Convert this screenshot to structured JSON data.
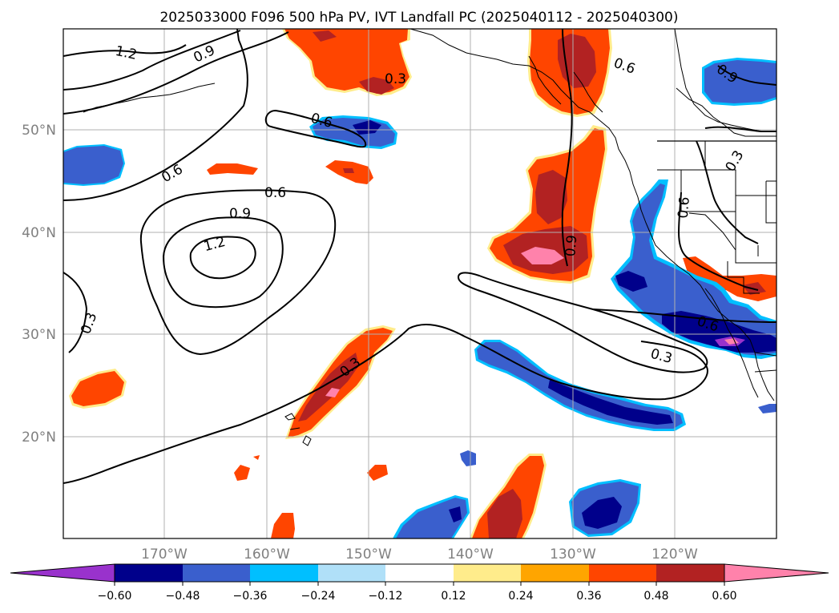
{
  "title": "2025033000 F096 500 hPa PV, IVT Landfall PC (2025040112 - 2025040300)",
  "lat_labels": [
    "50°N",
    "40°N",
    "30°N",
    "20°N"
  ],
  "lon_labels": [
    "170°W",
    "160°W",
    "150°W",
    "140°W",
    "130°W",
    "120°W"
  ],
  "contour_labels": [
    "1.2",
    "0.9",
    "0.6",
    "0.6",
    "0.9",
    "1.2",
    "0.3",
    "0.3",
    "0.6",
    "0.3",
    "0.6",
    "0.9",
    "0.3",
    "0.6",
    "0.9",
    "0.3",
    "0.6"
  ],
  "colorbar": {
    "ticks": [
      "−0.60",
      "−0.48",
      "−0.36",
      "−0.24",
      "−0.12",
      "0.12",
      "0.24",
      "0.36",
      "0.48",
      "0.60"
    ],
    "colors": [
      "#9932CC",
      "#00008B",
      "#3A5FCD",
      "#00BFFF",
      "#B0E0F8",
      "#FFFFFF",
      "#FFEC8B",
      "#FFA500",
      "#FF4500",
      "#B22222",
      "#FF82AB"
    ]
  },
  "fill_colors": {
    "purple": "#9932CC",
    "navy": "#00008B",
    "blue": "#3A5FCD",
    "deepsky": "#00BFFF",
    "lightblue": "#B0E0F8",
    "yellow": "#FFEC8B",
    "orange": "#FFA500",
    "red": "#FF4500",
    "firebrick": "#B22222",
    "pink": "#FF82AB"
  }
}
